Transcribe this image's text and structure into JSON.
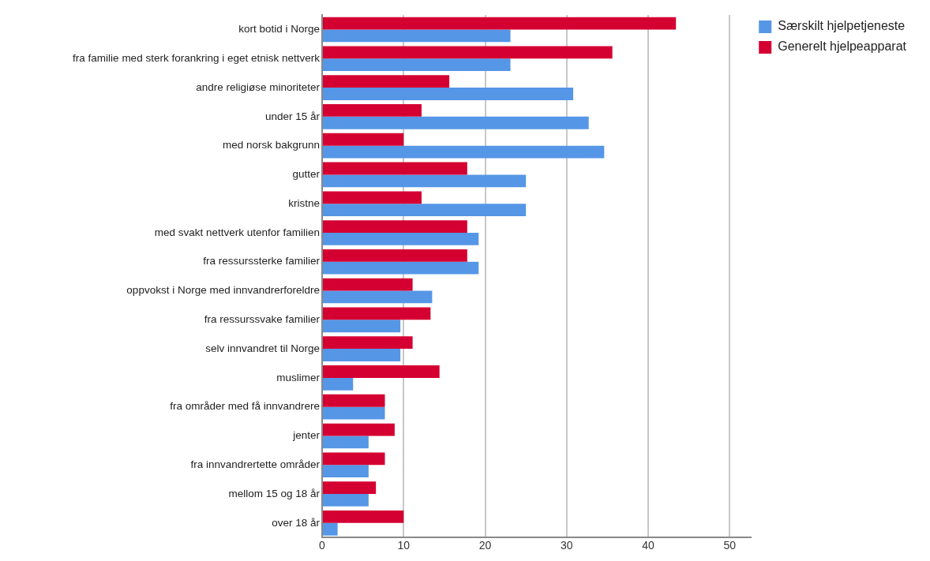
{
  "chart_data": {
    "type": "bar",
    "orientation": "horizontal",
    "categories": [
      "kort botid i Norge",
      "fra familie med sterk forankring i eget etnisk nettverk",
      "andre religiøse minoriteter",
      "under 15 år",
      "med norsk bakgrunn",
      "gutter",
      "kristne",
      "med svakt nettverk utenfor familien",
      "fra ressurssterke familier",
      "oppvokst i Norge med innvandrerforeldre",
      "fra ressurssvake familier",
      "selv innvandret til Norge",
      "muslimer",
      "fra områder med få innvandrere",
      "jenter",
      "fra innvandrertette områder",
      "mellom 15 og 18 år",
      "over 18 år"
    ],
    "series": [
      {
        "name": "Særskilt hjelpetjeneste",
        "color": "#5596e6",
        "values": [
          23.1,
          23.1,
          30.8,
          32.7,
          34.6,
          25.0,
          25.0,
          19.2,
          19.2,
          13.5,
          9.6,
          9.6,
          3.8,
          7.7,
          5.7,
          5.7,
          5.7,
          1.9
        ]
      },
      {
        "name": "Generelt hjelpeapparat",
        "color": "#d50032",
        "values": [
          43.4,
          35.6,
          15.6,
          12.2,
          10.0,
          17.8,
          12.2,
          17.8,
          17.8,
          11.1,
          13.3,
          11.1,
          14.4,
          7.7,
          8.9,
          7.7,
          6.6,
          10.0
        ]
      }
    ],
    "xlim": [
      0,
      52.6
    ],
    "xticks": [
      0,
      10,
      20,
      30,
      40,
      50
    ],
    "grid": "x",
    "legend": "top right"
  }
}
